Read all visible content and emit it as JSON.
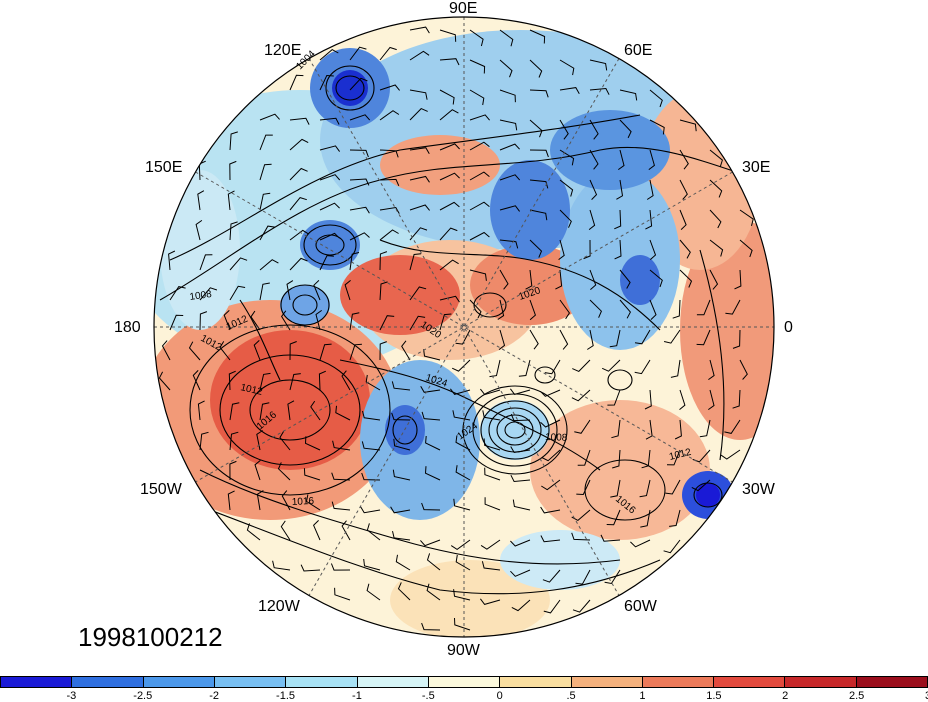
{
  "map": {
    "projection": "north-polar-stereographic",
    "longitude_labels": {
      "lon_90e": "90E",
      "lon_60e": "60E",
      "lon_30e": "30E",
      "lon_0": "0",
      "lon_30w": "30W",
      "lon_60w": "60W",
      "lon_90w": "90W",
      "lon_120w": "120W",
      "lon_150w": "150W",
      "lon_180": "180",
      "lon_150e": "150E",
      "lon_120e": "120E"
    },
    "contour_labels": [
      "1004",
      "1008",
      "1012",
      "1012",
      "1012",
      "1016",
      "1016",
      "1020",
      "1020",
      "1024",
      "1024",
      "1008",
      "1016",
      "1012"
    ],
    "date_stamp": "1998100212",
    "fill_colors": {
      "strong_positive": "#e34a33",
      "positive": "#f4a582",
      "neutral": "#fdf6e3",
      "negative": "#92c5de",
      "strong_negative": "#2166ac"
    }
  },
  "colorbar": {
    "colors": [
      "#1a1ad6",
      "#2f6fe0",
      "#4c98ea",
      "#78bff2",
      "#a8e2f5",
      "#d6f4f6",
      "#fbf8dc",
      "#f9dea0",
      "#f4b17d",
      "#ec7a5a",
      "#e24a3e",
      "#c7282a",
      "#9b0e1c"
    ],
    "labels": [
      "-3",
      "-2.5",
      "-2",
      "-1.5",
      "-1",
      "-.5",
      "0",
      ".5",
      "1",
      "1.5",
      "2",
      "2.5",
      "3"
    ]
  }
}
